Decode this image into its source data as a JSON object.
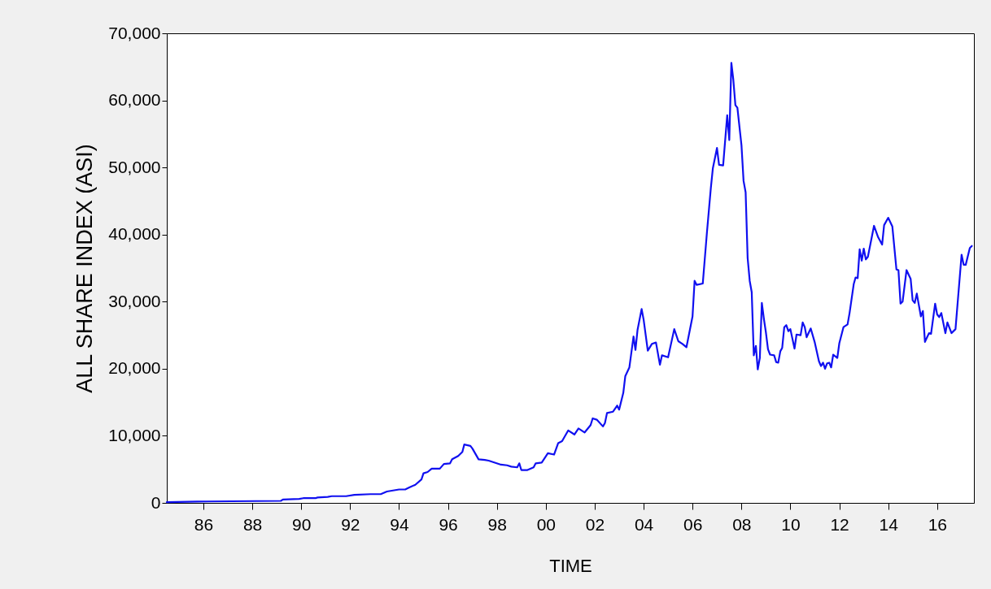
{
  "chart_data": {
    "type": "line",
    "xlabel": "TIME",
    "ylabel": "ALL SHARE INDEX (ASI)",
    "xlim": [
      "1985",
      "2018"
    ],
    "ylim": [
      0,
      70000
    ],
    "yticks": [
      {
        "value": 0,
        "label": "0"
      },
      {
        "value": 10000,
        "label": "10,000"
      },
      {
        "value": 20000,
        "label": "20,000"
      },
      {
        "value": 30000,
        "label": "30,000"
      },
      {
        "value": 40000,
        "label": "40,000"
      },
      {
        "value": 50000,
        "label": "50,000"
      },
      {
        "value": 60000,
        "label": "60,000"
      },
      {
        "value": 70000,
        "label": "70,000"
      }
    ],
    "xticks": [
      {
        "value": "1986-07",
        "label": "86"
      },
      {
        "value": "1988-07",
        "label": "88"
      },
      {
        "value": "1990-07",
        "label": "90"
      },
      {
        "value": "1992-07",
        "label": "92"
      },
      {
        "value": "1994-07",
        "label": "94"
      },
      {
        "value": "1996-07",
        "label": "96"
      },
      {
        "value": "1998-07",
        "label": "98"
      },
      {
        "value": "2000-07",
        "label": "00"
      },
      {
        "value": "2002-07",
        "label": "02"
      },
      {
        "value": "2004-07",
        "label": "04"
      },
      {
        "value": "2006-07",
        "label": "06"
      },
      {
        "value": "2008-07",
        "label": "08"
      },
      {
        "value": "2010-07",
        "label": "10"
      },
      {
        "value": "2012-07",
        "label": "12"
      },
      {
        "value": "2014-07",
        "label": "14"
      },
      {
        "value": "2016-07",
        "label": "16"
      }
    ],
    "grid": false,
    "marker": "none",
    "line_style": "solid",
    "series": [
      {
        "color": "#1010f0",
        "x": [
          "1985-01",
          "1986-04",
          "1989-09",
          "1989-10",
          "1990-06",
          "1990-08",
          "1991-02",
          "1991-03",
          "1991-08",
          "1991-10",
          "1992-05",
          "1992-09",
          "1993-05",
          "1993-10",
          "1994-01",
          "1994-07",
          "1994-10",
          "1994-12",
          "1995-03",
          "1995-06",
          "1995-07",
          "1995-09",
          "1995-11",
          "1996-03",
          "1996-05",
          "1996-08",
          "1996-09",
          "1996-12",
          "1997-02",
          "1997-03",
          "1997-06",
          "1997-07",
          "1997-10",
          "1998-01",
          "1998-03",
          "1998-06",
          "1998-09",
          "1998-12",
          "1999-02",
          "1999-05",
          "1999-06",
          "1999-07",
          "1999-10",
          "2000-01",
          "2000-02",
          "2000-05",
          "2000-08",
          "2000-11",
          "2001-01",
          "2001-03",
          "2001-06",
          "2001-09",
          "2001-11",
          "2002-02",
          "2002-05",
          "2002-06",
          "2002-08",
          "2002-11",
          "2002-12",
          "2003-01",
          "2003-04",
          "2003-06",
          "2003-07",
          "2003-09",
          "2003-10",
          "2003-12",
          "2004-02",
          "2004-03",
          "2004-04",
          "2004-06",
          "2004-07",
          "2004-09",
          "2004-11",
          "2005-01",
          "2005-03",
          "2005-04",
          "2005-07",
          "2005-10",
          "2005-12",
          "2006-02",
          "2006-04",
          "2006-07",
          "2006-08",
          "2006-09",
          "2006-12",
          "2007-02",
          "2007-04",
          "2007-05",
          "2007-07",
          "2007-08",
          "2007-10",
          "2007-12",
          "2008-01",
          "2008-02",
          "2008-03",
          "2008-04",
          "2008-05",
          "2008-07",
          "2008-08",
          "2008-09",
          "2008-10",
          "2008-11",
          "2008-12",
          "2009-01",
          "2009-02",
          "2009-03",
          "2009-04",
          "2009-05",
          "2009-06",
          "2009-07",
          "2009-08",
          "2009-09",
          "2009-11",
          "2009-12",
          "2010-01",
          "2010-02",
          "2010-03",
          "2010-04",
          "2010-05",
          "2010-06",
          "2010-07",
          "2010-09",
          "2010-10",
          "2010-12",
          "2011-01",
          "2011-02",
          "2011-03",
          "2011-05",
          "2011-07",
          "2011-09",
          "2011-10",
          "2011-11",
          "2011-12",
          "2012-01",
          "2012-02",
          "2012-03",
          "2012-04",
          "2012-06",
          "2012-07",
          "2012-09",
          "2012-11",
          "2012-12",
          "2013-02",
          "2013-03",
          "2013-04",
          "2013-05",
          "2013-06",
          "2013-07",
          "2013-08",
          "2013-09",
          "2013-12",
          "2014-02",
          "2014-04",
          "2014-05",
          "2014-07",
          "2014-09",
          "2014-11",
          "2014-12",
          "2015-01",
          "2015-02",
          "2015-04",
          "2015-06",
          "2015-07",
          "2015-08",
          "2015-09",
          "2015-11",
          "2015-12",
          "2016-01",
          "2016-03",
          "2016-04",
          "2016-06",
          "2016-07",
          "2016-08",
          "2016-09",
          "2016-11",
          "2016-12",
          "2017-02",
          "2017-04",
          "2017-07",
          "2017-08",
          "2017-09",
          "2017-11",
          "2017-12"
        ],
        "values": [
          100,
          200,
          300,
          500,
          600,
          700,
          700,
          800,
          900,
          1000,
          1000,
          1200,
          1300,
          1300,
          1700,
          2000,
          2000,
          2300,
          2700,
          3500,
          4400,
          4600,
          5100,
          5100,
          5800,
          5900,
          6500,
          7000,
          7600,
          8700,
          8500,
          8100,
          6500,
          6400,
          6300,
          6000,
          5700,
          5600,
          5400,
          5300,
          5900,
          4900,
          4900,
          5300,
          5900,
          6000,
          7400,
          7200,
          8900,
          9200,
          10800,
          10200,
          11100,
          10500,
          11600,
          12600,
          12400,
          11400,
          11900,
          13400,
          13600,
          14500,
          13900,
          16400,
          18900,
          20200,
          24800,
          22800,
          25800,
          28900,
          27300,
          22700,
          23700,
          23900,
          20600,
          22000,
          21700,
          25900,
          24100,
          23700,
          23200,
          27800,
          33100,
          32500,
          32700,
          40300,
          47000,
          49900,
          52900,
          50400,
          50300,
          57800,
          54100,
          65600,
          63100,
          59300,
          58900,
          53300,
          48000,
          46300,
          36500,
          33100,
          31400,
          22000,
          23400,
          19900,
          21600,
          29800,
          27400,
          25400,
          22900,
          22100,
          22000,
          21000,
          20900,
          22600,
          23100,
          26200,
          26500,
          25600,
          25900,
          23000,
          25100,
          25000,
          26900,
          26200,
          24700,
          26000,
          23900,
          21100,
          20400,
          20900,
          20000,
          20800,
          20900,
          20200,
          22100,
          21600,
          23800,
          26200,
          26600,
          28300,
          32600,
          33600,
          33500,
          37800,
          36100,
          37900,
          36300,
          36700,
          41300,
          39600,
          38500,
          41400,
          42500,
          41200,
          34800,
          34700,
          29700,
          30000,
          34700,
          33400,
          30200,
          29800,
          31200,
          27800,
          28600,
          24000,
          25300,
          25200,
          29700,
          28100,
          27700,
          28300,
          25300,
          26900,
          25300,
          25900,
          37000,
          35500,
          35500,
          38000,
          38300
        ]
      }
    ]
  }
}
